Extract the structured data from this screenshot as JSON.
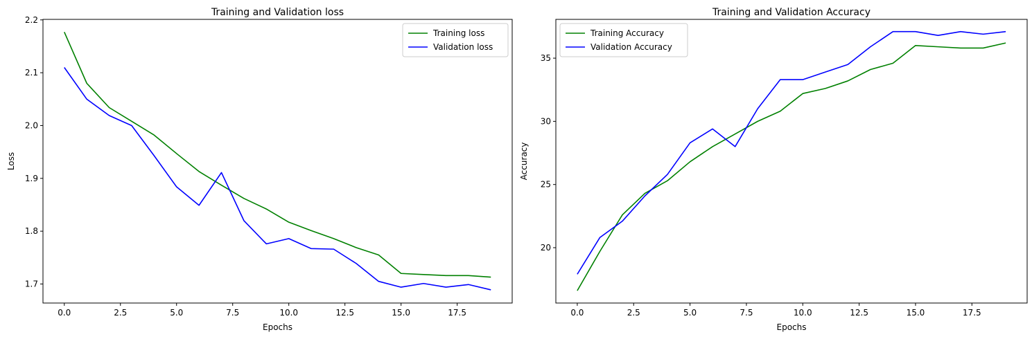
{
  "chart_data": [
    {
      "type": "line",
      "title": "Training and Validation loss",
      "xlabel": "Epochs",
      "ylabel": "Loss",
      "xlim": [
        -0.95,
        19.95
      ],
      "ylim": [
        1.664,
        2.201
      ],
      "xticks": [
        0.0,
        2.5,
        5.0,
        7.5,
        10.0,
        12.5,
        15.0,
        17.5
      ],
      "xtick_labels": [
        "0.0",
        "2.5",
        "5.0",
        "7.5",
        "10.0",
        "12.5",
        "15.0",
        "17.5"
      ],
      "yticks": [
        1.7,
        1.8,
        1.9,
        2.0,
        2.1,
        2.2
      ],
      "ytick_labels": [
        "1.7",
        "1.8",
        "1.9",
        "2.0",
        "2.1",
        "2.2"
      ],
      "legend_position": "top-right",
      "x": [
        0,
        1,
        2,
        3,
        4,
        5,
        6,
        7,
        8,
        9,
        10,
        11,
        12,
        13,
        14,
        15,
        16,
        17,
        18,
        19
      ],
      "series": [
        {
          "name": "Training loss",
          "color": "#008000",
          "values": [
            2.177,
            2.08,
            2.034,
            2.008,
            1.982,
            1.947,
            1.913,
            1.887,
            1.862,
            1.842,
            1.817,
            1.801,
            1.786,
            1.769,
            1.755,
            1.72,
            1.718,
            1.716,
            1.716,
            1.713
          ]
        },
        {
          "name": "Validation loss",
          "color": "#0000ff",
          "values": [
            2.11,
            2.05,
            2.019,
            2.0,
            1.943,
            1.884,
            1.849,
            1.911,
            1.82,
            1.776,
            1.786,
            1.767,
            1.766,
            1.739,
            1.705,
            1.694,
            1.701,
            1.694,
            1.699,
            1.689
          ]
        }
      ]
    },
    {
      "type": "line",
      "title": "Training and Validation Accuracy",
      "xlabel": "Epochs",
      "ylabel": "Accuracy",
      "xlim": [
        -0.95,
        19.95
      ],
      "ylim": [
        15.62,
        38.07
      ],
      "xticks": [
        0.0,
        2.5,
        5.0,
        7.5,
        10.0,
        12.5,
        15.0,
        17.5
      ],
      "xtick_labels": [
        "0.0",
        "2.5",
        "5.0",
        "7.5",
        "10.0",
        "12.5",
        "15.0",
        "17.5"
      ],
      "yticks": [
        20,
        25,
        30,
        35
      ],
      "ytick_labels": [
        "20",
        "25",
        "30",
        "35"
      ],
      "legend_position": "top-left",
      "x": [
        0,
        1,
        2,
        3,
        4,
        5,
        6,
        7,
        8,
        9,
        10,
        11,
        12,
        13,
        14,
        15,
        16,
        17,
        18,
        19
      ],
      "series": [
        {
          "name": "Training Accuracy",
          "color": "#008000",
          "values": [
            16.6,
            19.7,
            22.6,
            24.3,
            25.3,
            26.8,
            28.0,
            29.0,
            30.0,
            30.8,
            32.2,
            32.6,
            33.2,
            34.1,
            34.6,
            36.0,
            35.9,
            35.8,
            35.8,
            36.2
          ]
        },
        {
          "name": "Validation Accuracy",
          "color": "#0000ff",
          "values": [
            17.9,
            20.8,
            22.1,
            24.1,
            25.8,
            28.3,
            29.4,
            28.0,
            31.0,
            33.3,
            33.3,
            33.9,
            34.5,
            35.9,
            37.1,
            37.1,
            36.8,
            37.1,
            36.9,
            37.1
          ]
        }
      ]
    }
  ]
}
